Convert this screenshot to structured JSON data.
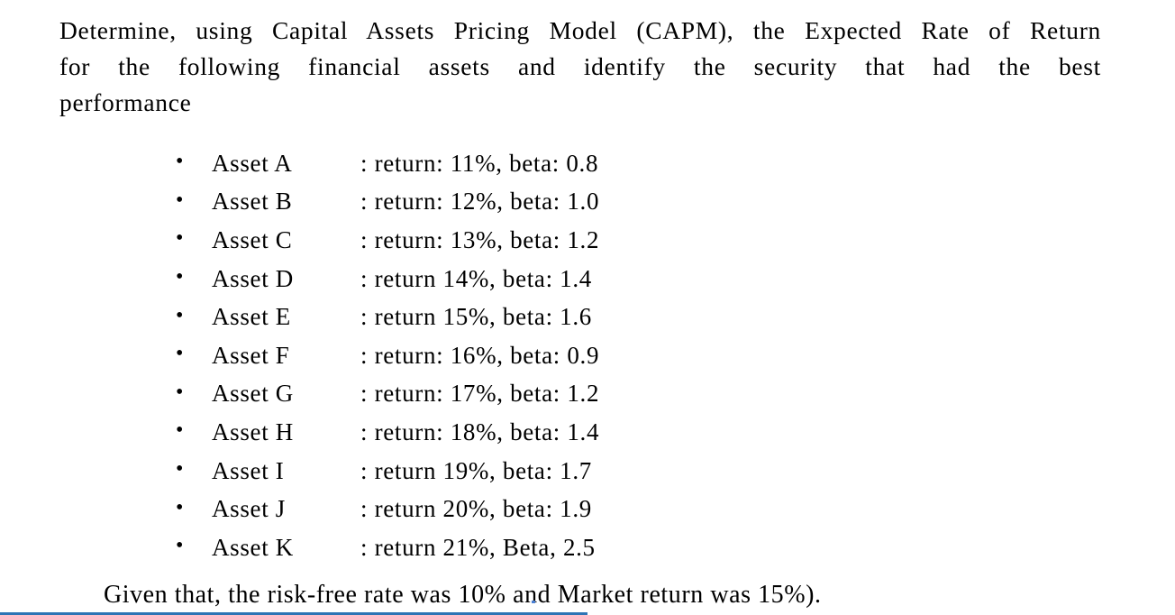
{
  "document": {
    "intro_lines": [
      "Determine, using Capital Assets Pricing Model (CAPM), the Expected Rate of Return",
      "for the following financial assets and identify the security that had the best",
      "performance"
    ],
    "bullet_glyph": "•",
    "assets": [
      {
        "name": "Asset A",
        "details": ": return: 11%, beta: 0.8"
      },
      {
        "name": "Asset B",
        "details": ": return: 12%, beta: 1.0"
      },
      {
        "name": "Asset C",
        "details": ": return: 13%, beta: 1.2"
      },
      {
        "name": "Asset D",
        "details": ": return 14%, beta: 1.4"
      },
      {
        "name": "Asset E",
        "details": ": return 15%, beta: 1.6"
      },
      {
        "name": "Asset F",
        "details": ": return: 16%, beta: 0.9"
      },
      {
        "name": "Asset G",
        "details": ": return: 17%, beta: 1.2"
      },
      {
        "name": "Asset H",
        "details": ": return: 18%, beta: 1.4"
      },
      {
        "name": "Asset I",
        "details": ": return 19%, beta: 1.7"
      },
      {
        "name": "Asset J",
        "details": ": return 20%, beta: 1.9"
      },
      {
        "name": "Asset K",
        "details": ": return 21%, Beta, 2.5"
      }
    ],
    "footer": "Given that, the risk-free rate was 10% and Market return was 15%)."
  },
  "colors": {
    "text": "#000000",
    "accent_line": "#2e74b5",
    "artifact_dot": "#4a7fd4"
  }
}
